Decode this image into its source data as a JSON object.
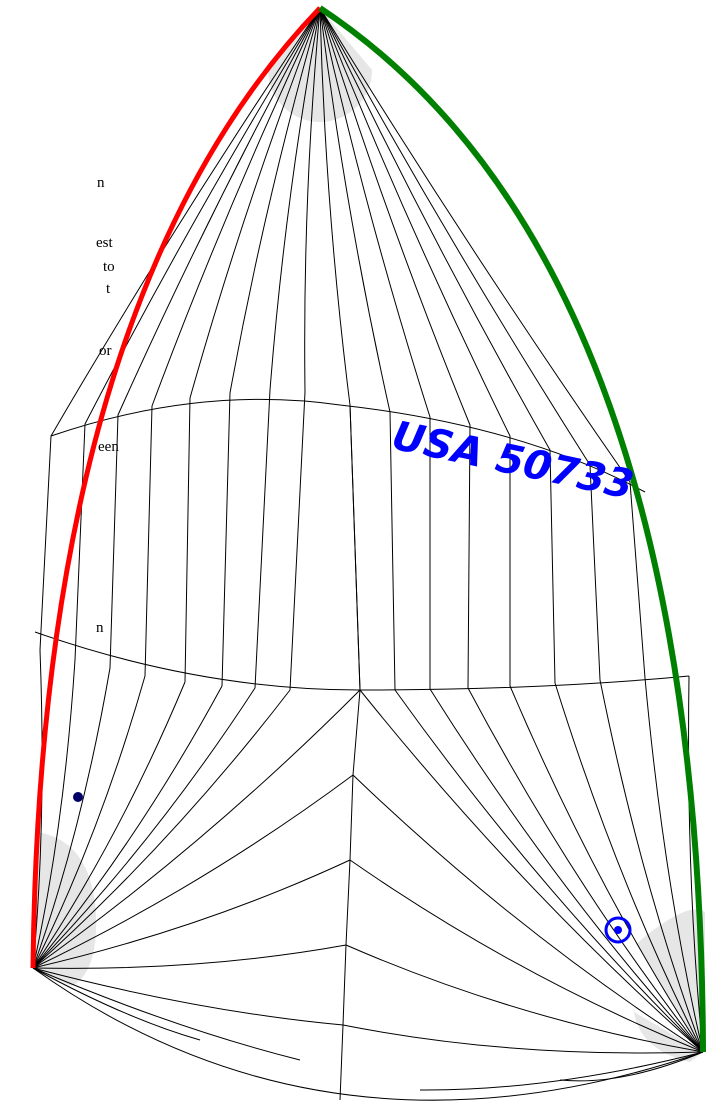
{
  "sail_number": "USA 50733",
  "text_fragments": [
    "n",
    "est",
    "to",
    "t",
    "or",
    "een",
    "n"
  ],
  "colors": {
    "luff": "#ff0000",
    "leech": "#008000",
    "seams": "#000000",
    "patch": "#e6e6e6",
    "sail_number": "#0000ff",
    "dot": "#000066",
    "target": "#0000ff"
  },
  "icons": [
    "dot-marker-icon",
    "target-icon"
  ]
}
